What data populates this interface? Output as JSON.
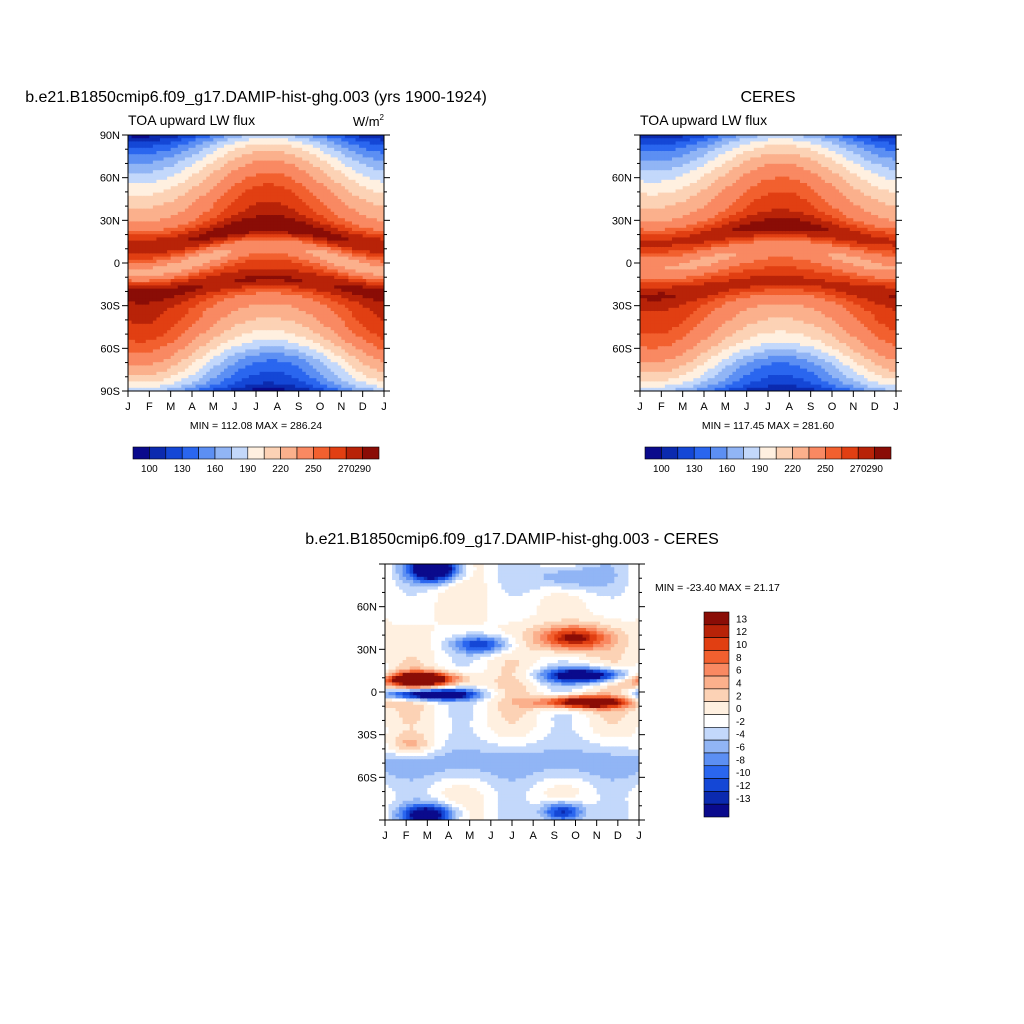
{
  "palette": {
    "abs_colors": [
      "#0a0a8c",
      "#0b2aaf",
      "#1447d6",
      "#2a66ef",
      "#5c8ff3",
      "#91b5f5",
      "#c3d8fb",
      "#fff0e0",
      "#fcd2b5",
      "#fbb08c",
      "#f98962",
      "#f2602f",
      "#e13f12",
      "#b82308",
      "#8a0d06"
    ],
    "diff_colors": [
      "#0a0a8c",
      "#0b2aaf",
      "#1447d6",
      "#2a66ef",
      "#5c8ff3",
      "#91b5f5",
      "#c3d8fb",
      "#ffffff",
      "#fff0e0",
      "#fcd2b5",
      "#fbb08c",
      "#f98962",
      "#f2602f",
      "#e13f12",
      "#b82308",
      "#8a0d06"
    ],
    "abs_bounds": [
      90,
      100,
      115,
      130,
      145,
      160,
      175,
      190,
      205,
      220,
      235,
      250,
      260,
      270,
      280,
      290
    ],
    "diff_bounds": [
      -15,
      -13,
      -12,
      -10,
      -8,
      -6,
      -4,
      -2,
      0,
      2,
      4,
      6,
      8,
      10,
      12,
      13,
      15
    ]
  },
  "month_labels": [
    "J",
    "F",
    "M",
    "A",
    "M",
    "J",
    "J",
    "A",
    "S",
    "O",
    "N",
    "D",
    "J"
  ],
  "chart_data": [
    {
      "type": "heatmap",
      "title": "b.e21.B1850cmip6.f09_g17.DAMIP-hist-ghg.003 (yrs 1900-1924)",
      "subtitle_left": "TOA upward LW flux",
      "units": "W/m",
      "units_sup": "2",
      "x": [
        "J",
        "F",
        "M",
        "A",
        "M",
        "J",
        "J",
        "A",
        "S",
        "O",
        "N",
        "D",
        "J"
      ],
      "y_ticks": [
        "90N",
        "60N",
        "30N",
        "0",
        "30S",
        "60S",
        "90S"
      ],
      "ylim": [
        -90,
        90
      ],
      "stats": "MIN = 112.08 MAX = 286.24",
      "colorbar_labels": [
        "100",
        "130",
        "160",
        "190",
        "220",
        "250",
        "270",
        "290"
      ]
    },
    {
      "type": "heatmap",
      "title": "CERES",
      "subtitle_left": "TOA upward LW flux",
      "x": [
        "J",
        "F",
        "M",
        "A",
        "M",
        "J",
        "J",
        "A",
        "S",
        "O",
        "N",
        "D",
        "J"
      ],
      "y_ticks": [
        "60N",
        "30N",
        "0",
        "30S",
        "60S"
      ],
      "ylim": [
        -90,
        90
      ],
      "stats": "MIN = 117.45 MAX = 281.60",
      "colorbar_labels": [
        "100",
        "130",
        "160",
        "190",
        "220",
        "250",
        "270",
        "290"
      ]
    },
    {
      "type": "heatmap",
      "title": "b.e21.B1850cmip6.f09_g17.DAMIP-hist-ghg.003 - CERES",
      "x": [
        "J",
        "F",
        "M",
        "A",
        "M",
        "J",
        "J",
        "A",
        "S",
        "O",
        "N",
        "D",
        "J"
      ],
      "y_ticks": [
        "60N",
        "30N",
        "0",
        "30S",
        "60S"
      ],
      "ylim": [
        -90,
        90
      ],
      "stats": "MIN = -23.40 MAX =  21.17",
      "colorbar_labels": [
        "13",
        "12",
        "10",
        "8",
        "6",
        "4",
        "2",
        "0",
        "-2",
        "-4",
        "-6",
        "-8",
        "-10",
        "-12",
        "-13"
      ]
    }
  ]
}
